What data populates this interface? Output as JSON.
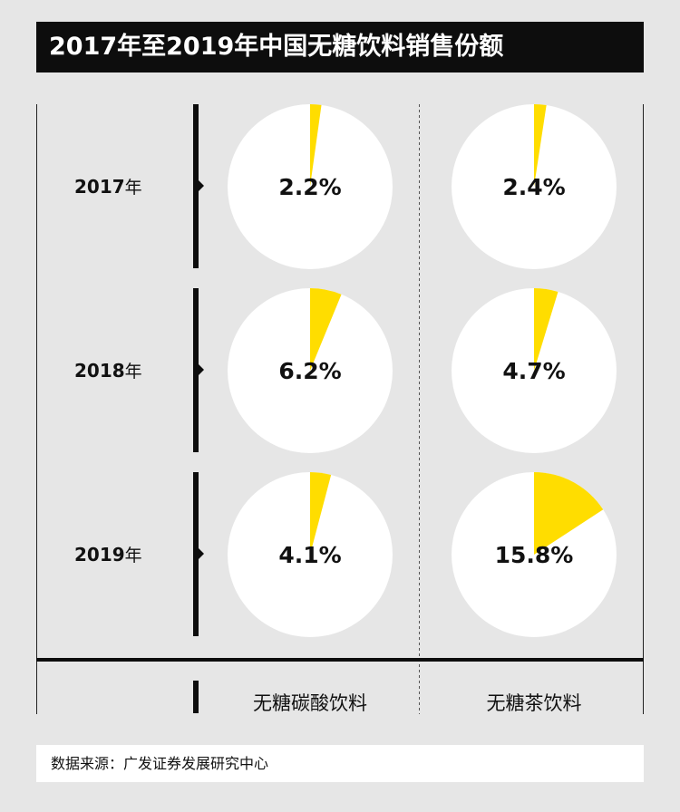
{
  "title": "2017年至2019年中国无糖饮料销售份额",
  "chart_data": {
    "type": "pie",
    "rows": [
      "2017",
      "2018",
      "2019"
    ],
    "row_suffix": "年",
    "columns": [
      "无糖碳酸饮料",
      "无糖茶饮料"
    ],
    "values": [
      [
        2.2,
        2.4
      ],
      [
        6.2,
        4.7
      ],
      [
        4.1,
        15.8
      ]
    ],
    "value_labels": [
      [
        "2.2%",
        "2.4%"
      ],
      [
        "6.2%",
        "4.7%"
      ],
      [
        "4.1%",
        "15.8%"
      ]
    ],
    "colors": {
      "slice": "#ffdd00",
      "remainder": "#ffffff",
      "background": "#e6e6e6"
    }
  },
  "source": "数据来源：广发证券发展研究中心"
}
